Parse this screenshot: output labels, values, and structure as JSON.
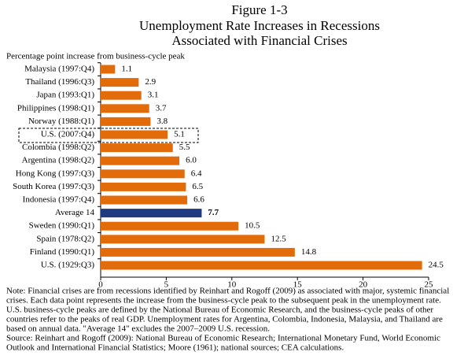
{
  "chart_data": {
    "type": "bar",
    "title": [
      "Figure 1-3",
      "Unemployment Rate Increases in Recessions",
      "Associated with Financial Crises"
    ],
    "subtitle": "Percentage point increase from business-cycle peak",
    "categories": [
      "Malaysia (1997:Q4)",
      "Thailand (1996:Q3)",
      "Japan (1993:Q1)",
      "Philippines (1998:Q1)",
      "Norway (1988:Q1)",
      "U.S. (2007:Q4)",
      "Colombia (1998:Q2)",
      "Argentina (1998:Q2)",
      "Hong Kong (1997:Q3)",
      "South Korea (1997:Q3)",
      "Indonesia (1997:Q4)",
      "Average 14",
      "Sweden (1990:Q1)",
      "Spain (1978:Q2)",
      "Finland (1990:Q1)",
      "U.S. (1929:Q3)"
    ],
    "values": [
      1.1,
      2.9,
      3.1,
      3.7,
      3.8,
      5.1,
      5.5,
      6.0,
      6.4,
      6.5,
      6.6,
      7.7,
      10.5,
      12.5,
      14.8,
      24.5
    ],
    "value_labels": [
      "1.1",
      "2.9",
      "3.1",
      "3.7",
      "3.8",
      "5.1",
      "5.5",
      "6.0",
      "6.4",
      "6.5",
      "6.6",
      "7.7",
      "10.5",
      "12.5",
      "14.8",
      "24.5"
    ],
    "colors": [
      "#e36c0a",
      "#e36c0a",
      "#e36c0a",
      "#e36c0a",
      "#e36c0a",
      "#e36c0a",
      "#e36c0a",
      "#e36c0a",
      "#e36c0a",
      "#e36c0a",
      "#e36c0a",
      "#1f3a80",
      "#e36c0a",
      "#e36c0a",
      "#e36c0a",
      "#e36c0a"
    ],
    "xlim": [
      0,
      25
    ],
    "xticks": [
      0,
      5,
      10,
      15,
      20,
      25
    ],
    "note": [
      "Note: Financial crises are from recessions identified by Reinhart and Rogoff (2009) as associated with major, systemic financial",
      "crises. Each data point represents the increase from the business-cycle peak to the subsequent peak in the unemployment rate.",
      "U.S. business-cycle peaks are defined by the National Bureau of Economic Research, and the business-cycle peaks of other",
      "countries refer to the peaks of real GDP. Unemployment rates for Argentina, Colombia, Indonesia,  Malaysia, and Thailand are",
      "based on annual data. \"Average 14\" excludes the 2007–2009 U.S. recession.",
      "Source: Reinhart and Rogoff (2009): National Bureau of Economic Research; International Monetary Fund, World Economic",
      "Outlook and International Financial Statistics; Moore (1961); national sources; CEA calculations."
    ]
  }
}
